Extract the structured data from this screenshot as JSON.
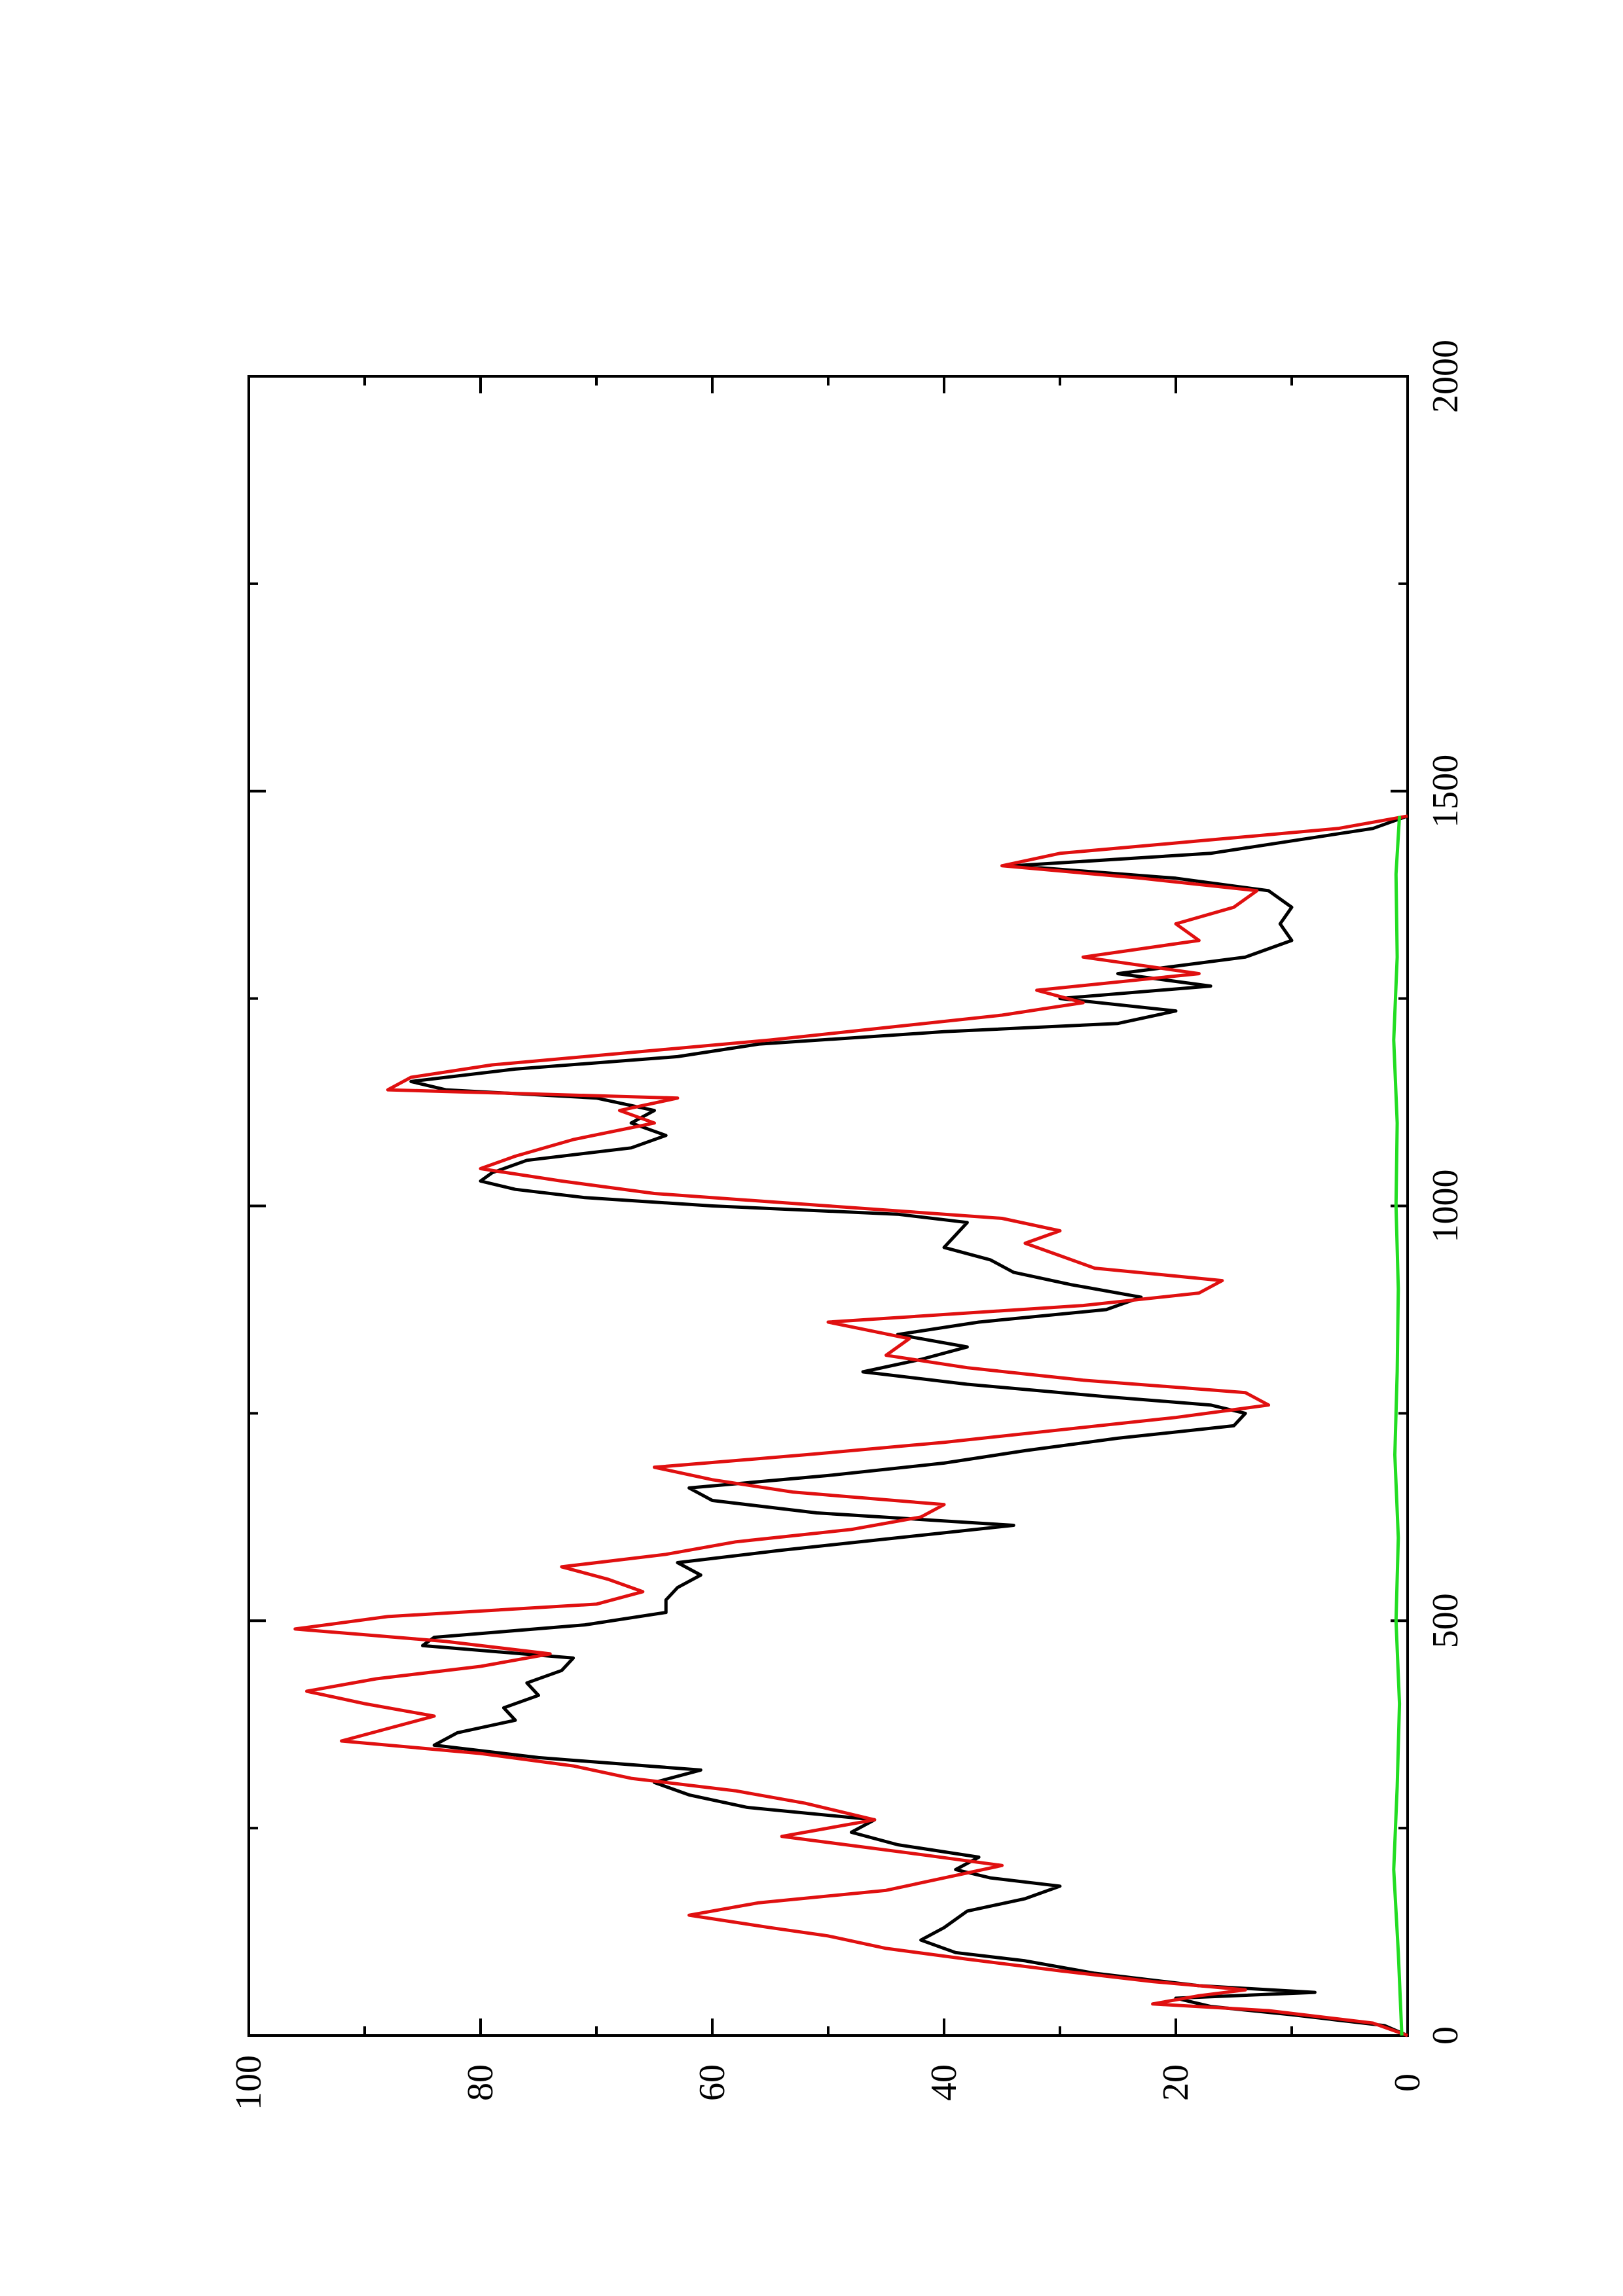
{
  "chart_data": {
    "type": "line",
    "orientation": "rotated-90-ccw",
    "title": "",
    "xlabel": "",
    "ylabel": "",
    "xlim": [
      0,
      2000
    ],
    "ylim": [
      0,
      100
    ],
    "x_ticks": [
      "0",
      "500",
      "1000",
      "1500",
      "2000"
    ],
    "y_ticks": [
      "0",
      "20",
      "40",
      "60",
      "80",
      "100"
    ],
    "x_minor_step": 250,
    "y_minor_step": 10,
    "grid": false,
    "legend": "none",
    "series": [
      {
        "color": "#000000",
        "x": [
          0,
          12,
          25,
          35,
          45,
          52,
          60,
          75,
          90,
          100,
          115,
          130,
          150,
          165,
          180,
          190,
          200,
          215,
          230,
          245,
          260,
          275,
          290,
          305,
          320,
          335,
          350,
          365,
          380,
          395,
          410,
          425,
          440,
          455,
          470,
          480,
          495,
          510,
          525,
          540,
          555,
          570,
          585,
          600,
          615,
          630,
          645,
          660,
          675,
          690,
          705,
          720,
          735,
          750,
          760,
          770,
          785,
          800,
          815,
          830,
          845,
          860,
          875,
          890,
          905,
          920,
          935,
          950,
          965,
          980,
          990,
          1000,
          1010,
          1020,
          1030,
          1040,
          1055,
          1070,
          1085,
          1100,
          1115,
          1130,
          1140,
          1150,
          1165,
          1180,
          1195,
          1210,
          1220,
          1235,
          1250,
          1265,
          1280,
          1300,
          1320,
          1340,
          1360,
          1380,
          1395,
          1410,
          1425,
          1440,
          1455,
          1470
        ],
        "values": [
          0,
          2,
          10,
          17,
          20,
          8,
          18,
          27,
          33,
          39,
          42,
          40,
          38,
          33,
          30,
          36,
          39,
          37,
          44,
          48,
          46,
          57,
          62,
          65,
          61,
          75,
          84,
          82,
          77,
          78,
          75,
          76,
          73,
          72,
          85,
          84,
          71,
          64,
          64,
          63,
          61,
          63,
          54,
          44,
          34,
          51,
          60,
          62,
          50,
          40,
          33,
          25,
          15,
          14,
          17,
          26,
          38,
          47,
          42,
          38,
          44,
          37,
          26,
          23,
          29,
          34,
          36,
          40,
          39,
          38,
          44,
          60,
          71,
          77,
          80,
          79,
          76,
          67,
          64,
          67,
          65,
          70,
          83,
          86,
          77,
          63,
          56,
          40,
          25,
          20,
          30,
          17,
          25,
          14,
          10,
          11,
          10,
          12,
          20,
          34,
          17,
          10,
          3,
          0
        ]
      },
      {
        "color": "#e01010",
        "x": [
          0,
          15,
          30,
          38,
          48,
          55,
          65,
          78,
          92,
          105,
          120,
          130,
          145,
          160,
          175,
          190,
          205,
          220,
          240,
          260,
          280,
          295,
          310,
          325,
          340,
          355,
          370,
          385,
          400,
          415,
          430,
          445,
          460,
          475,
          490,
          505,
          520,
          535,
          550,
          565,
          580,
          595,
          610,
          625,
          640,
          655,
          670,
          685,
          700,
          715,
          730,
          745,
          760,
          775,
          790,
          805,
          820,
          840,
          860,
          880,
          895,
          910,
          925,
          940,
          955,
          970,
          985,
          1000,
          1015,
          1030,
          1045,
          1060,
          1080,
          1100,
          1115,
          1130,
          1140,
          1155,
          1170,
          1185,
          1200,
          1215,
          1230,
          1245,
          1260,
          1280,
          1300,
          1320,
          1340,
          1360,
          1380,
          1395,
          1410,
          1425,
          1440,
          1455,
          1470
        ],
        "values": [
          0,
          3,
          12,
          22,
          18,
          14,
          22,
          30,
          38,
          45,
          50,
          55,
          62,
          56,
          45,
          40,
          35,
          43,
          54,
          46,
          52,
          58,
          67,
          72,
          80,
          92,
          88,
          84,
          90,
          95,
          89,
          80,
          74,
          83,
          96,
          88,
          70,
          66,
          69,
          73,
          64,
          58,
          48,
          42,
          40,
          53,
          60,
          65,
          52,
          40,
          30,
          20,
          12,
          14,
          28,
          38,
          45,
          43,
          50,
          28,
          18,
          16,
          27,
          30,
          33,
          30,
          35,
          50,
          65,
          73,
          80,
          77,
          72,
          65,
          68,
          63,
          88,
          86,
          79,
          67,
          55,
          45,
          35,
          28,
          32,
          18,
          28,
          18,
          20,
          15,
          13,
          23,
          35,
          30,
          18,
          6,
          0
        ]
      },
      {
        "color": "#22dd22",
        "x": [
          0,
          100,
          200,
          300,
          400,
          500,
          600,
          700,
          800,
          900,
          1000,
          1100,
          1200,
          1300,
          1400,
          1470
        ],
        "values": [
          0.5,
          0.8,
          1.2,
          0.9,
          0.7,
          1.0,
          0.8,
          1.1,
          0.9,
          0.8,
          1.0,
          0.9,
          1.2,
          0.9,
          1.0,
          0.7
        ]
      }
    ]
  }
}
